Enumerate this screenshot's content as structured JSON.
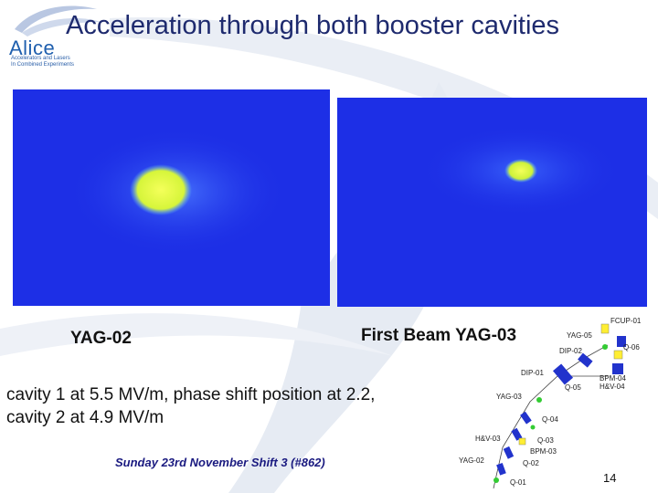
{
  "slide": {
    "title": "Acceleration through both booster cavities",
    "page_number": "14"
  },
  "logo": {
    "word": "Alice",
    "subtitle_line1": "Accelerators and Lasers",
    "subtitle_line2": "In Combined Experiments"
  },
  "images": {
    "left_label": "YAG-02",
    "right_label": "First Beam YAG-03"
  },
  "body": {
    "cavity_line1": "cavity 1 at 5.5 MV/m, phase shift position at 2.2,",
    "cavity_line2": "cavity 2 at 4.9 MV/m",
    "shift_note": "Sunday 23rd November Shift 3 (#862)"
  },
  "beamline": {
    "labels": {
      "fcup01": "FCUP-01",
      "yag05": "YAG-05",
      "q06": "Q-06",
      "dip02": "DIP-02",
      "dip01": "DIP-01",
      "bpm04": "BPM-04",
      "hv04": "H&V-04",
      "q05": "Q-05",
      "yag03": "YAG-03",
      "q04": "Q-04",
      "hv03": "H&V-03",
      "q03": "Q-03",
      "bpm03": "BPM-03",
      "yag02": "YAG-02",
      "q02": "Q-02",
      "q01": "Q-01"
    }
  },
  "colors": {
    "title": "#1e2a6e",
    "beam_background": "#1d2fe6",
    "beam_spot": "#e8ff3a",
    "magnet_blue": "#2233cc",
    "element_yellow": "#ffee33",
    "element_green": "#33cc33"
  }
}
